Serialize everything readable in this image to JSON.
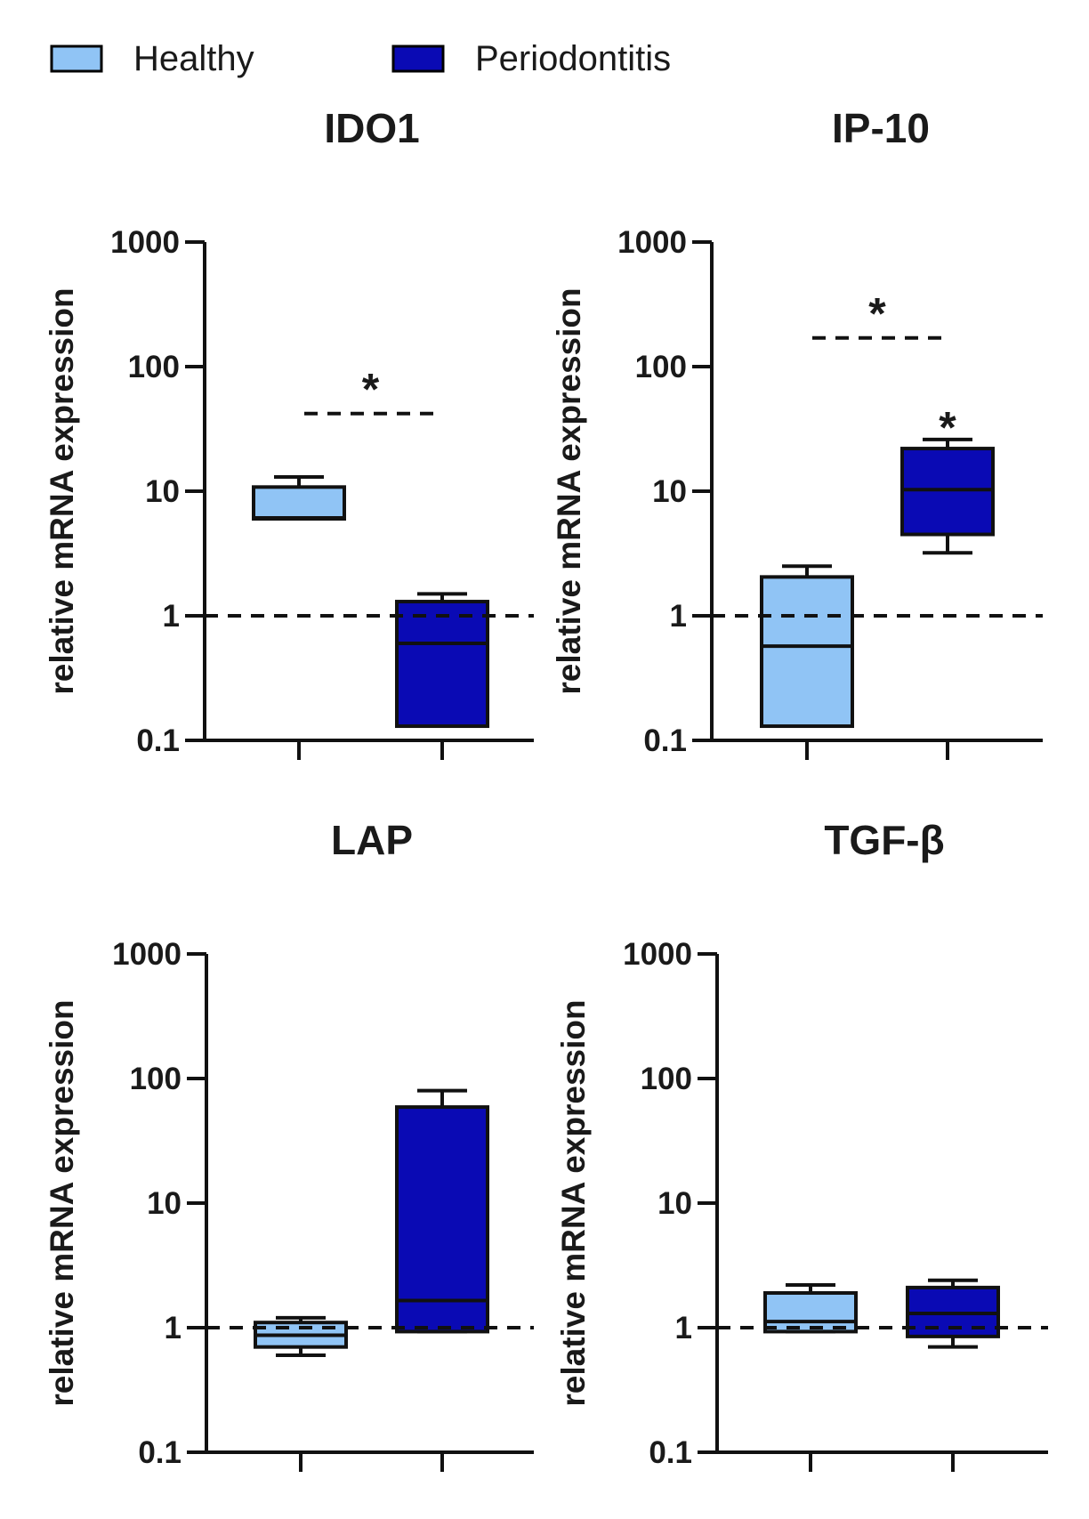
{
  "legend": [
    {
      "label": "Healthy",
      "color": "#90c4f5"
    },
    {
      "label": "Periodontitis",
      "color": "#0a0ab4"
    }
  ],
  "chart_data": [
    {
      "type": "box",
      "title": "IDO1",
      "ylabel": "relative mRNA expression",
      "yscale": "log",
      "ylim": [
        0.1,
        1000
      ],
      "yticks": [
        "0.1",
        "1",
        "10",
        "100",
        "1000"
      ],
      "reference_line": 1,
      "groups": [
        {
          "name": "Healthy",
          "whisker_low": 6.0,
          "q1": 6.0,
          "median": 6.1,
          "q3": 10.8,
          "whisker_high": 13.0
        },
        {
          "name": "Periodontitis",
          "whisker_low": 0.13,
          "q1": 0.13,
          "median": 0.6,
          "q3": 1.3,
          "whisker_high": 1.5
        }
      ],
      "annotations": [
        {
          "text": "*",
          "type": "bracket",
          "y": 42
        }
      ]
    },
    {
      "type": "box",
      "title": "IP-10",
      "ylabel": "relative mRNA expression",
      "yscale": "log",
      "ylim": [
        0.1,
        1000
      ],
      "yticks": [
        "0.1",
        "1",
        "10",
        "100",
        "1000"
      ],
      "reference_line": 1,
      "groups": [
        {
          "name": "Healthy",
          "whisker_low": 0.13,
          "q1": 0.13,
          "median": 0.57,
          "q3": 2.05,
          "whisker_high": 2.5
        },
        {
          "name": "Periodontitis",
          "whisker_low": 3.2,
          "q1": 4.5,
          "median": 10.3,
          "q3": 22,
          "whisker_high": 26
        }
      ],
      "annotations": [
        {
          "text": "*",
          "type": "bracket",
          "y": 170
        },
        {
          "text": "*",
          "type": "group",
          "group": "Periodontitis",
          "y": 40
        }
      ]
    },
    {
      "type": "box",
      "title": "LAP",
      "ylabel": "relative mRNA expression",
      "yscale": "log",
      "ylim": [
        0.1,
        1000
      ],
      "yticks": [
        "0.1",
        "1",
        "10",
        "100",
        "1000"
      ],
      "reference_line": 1,
      "groups": [
        {
          "name": "Healthy",
          "whisker_low": 0.6,
          "q1": 0.7,
          "median": 0.87,
          "q3": 1.1,
          "whisker_high": 1.2
        },
        {
          "name": "Periodontitis",
          "whisker_low": 0.93,
          "q1": 0.93,
          "median": 1.65,
          "q3": 59,
          "whisker_high": 80
        }
      ],
      "annotations": []
    },
    {
      "type": "box",
      "title": "TGF-β",
      "ylabel": "relative mRNA expression",
      "yscale": "log",
      "ylim": [
        0.1,
        1000
      ],
      "yticks": [
        "0.1",
        "1",
        "10",
        "100",
        "1000"
      ],
      "reference_line": 1,
      "groups": [
        {
          "name": "Healthy",
          "whisker_low": 0.93,
          "q1": 0.93,
          "median": 1.12,
          "q3": 1.9,
          "whisker_high": 2.2
        },
        {
          "name": "Periodontitis",
          "whisker_low": 0.7,
          "q1": 0.85,
          "median": 1.3,
          "q3": 2.1,
          "whisker_high": 2.4
        }
      ],
      "annotations": []
    }
  ]
}
